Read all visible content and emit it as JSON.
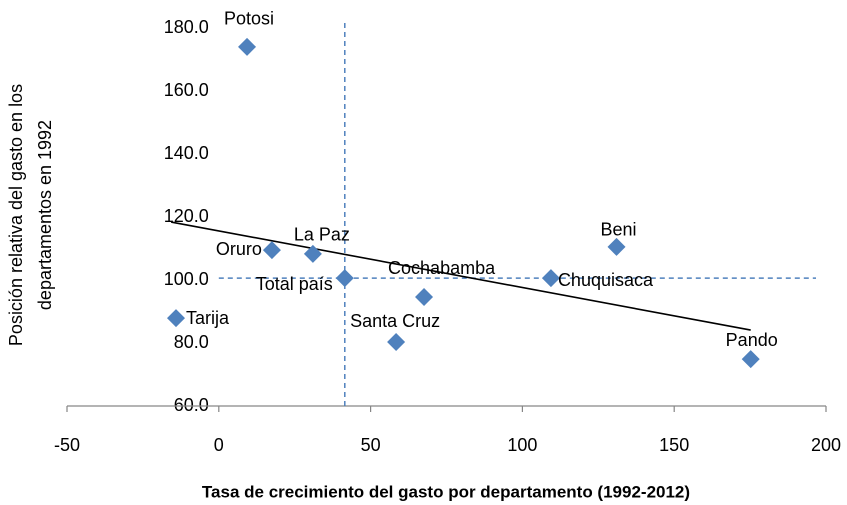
{
  "chart_data": {
    "type": "scatter",
    "x_label": "Tasa de crecimiento del gasto por departamento (1992-2012)",
    "y_label": [
      "Posición relativa del gasto en los",
      "departamentos en 1992"
    ],
    "series": [
      {
        "color": "#4f81bd",
        "labels": [
          "Potosi",
          "Oruro",
          "La Paz",
          "Total país",
          "Cochabamba",
          "Santa Cruz",
          "Tarija",
          "Chuquisaca",
          "Beni",
          "Pando"
        ],
        "x": [
          9.3,
          17.5,
          31,
          41.5,
          67.6,
          58.4,
          -14.1,
          109.4,
          131,
          175.2
        ],
        "values": [
          174.0,
          109.5,
          108.3,
          100.6,
          94.6,
          80.3,
          87.9,
          100.6,
          110.5,
          74.9
        ]
      }
    ],
    "trendline": {
      "color": "#000000",
      "x": [
        -15.7,
        175.2
      ],
      "values": [
        118.4,
        84.1
      ]
    },
    "reference_lines": {
      "color": "#4f81bd",
      "x": 41.5,
      "y": 100.6
    },
    "xlim": [
      -50,
      200
    ],
    "xticks": [
      -50,
      0,
      50,
      100,
      150,
      200
    ],
    "ylim": [
      60,
      180
    ],
    "yticks": [
      {
        "value": 60,
        "label": "60.0"
      },
      {
        "value": 80,
        "label": "80.0"
      },
      {
        "value": 100,
        "label": "100.0"
      },
      {
        "value": 120,
        "label": "120.0"
      },
      {
        "value": 140,
        "label": "140.0"
      },
      {
        "value": 160,
        "label": "160.0"
      },
      {
        "value": 180,
        "label": "180.0"
      }
    ]
  }
}
